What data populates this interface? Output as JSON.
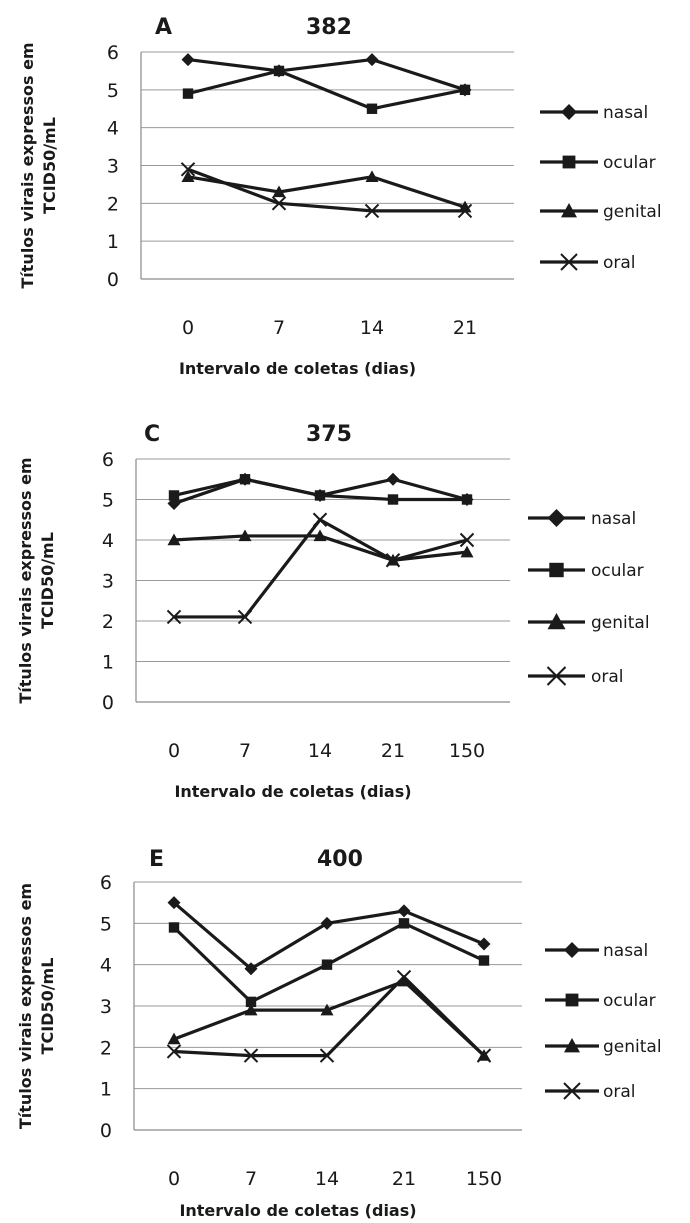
{
  "chart_data": [
    {
      "type": "line",
      "panel_label": "A",
      "title": "382",
      "xlabel": "Intervalo de coletas (dias)",
      "ylabel": "Títulos virais expressos em TCID50/mL",
      "categories": [
        "0",
        "7",
        "14",
        "21"
      ],
      "ylim": [
        0,
        6
      ],
      "yticks": [
        "0",
        "1",
        "2",
        "3",
        "4",
        "5",
        "6"
      ],
      "grid": true,
      "legend_position": "right",
      "series": [
        {
          "name": "nasal",
          "marker": "diamond",
          "values": [
            5.8,
            5.5,
            5.8,
            5.0
          ]
        },
        {
          "name": "ocular",
          "marker": "square",
          "values": [
            4.9,
            5.5,
            4.5,
            5.0
          ]
        },
        {
          "name": "genital",
          "marker": "triangle",
          "values": [
            2.7,
            2.3,
            2.7,
            1.9
          ]
        },
        {
          "name": "oral",
          "marker": "x",
          "values": [
            2.9,
            2.0,
            1.8,
            1.8
          ]
        }
      ]
    },
    {
      "type": "line",
      "panel_label": "C",
      "title": "375",
      "xlabel": "Intervalo de coletas (dias)",
      "ylabel": "Títulos virais expressos em TCID50/mL",
      "categories": [
        "0",
        "7",
        "14",
        "21",
        "150"
      ],
      "ylim": [
        0,
        6
      ],
      "yticks": [
        "0",
        "1",
        "2",
        "3",
        "4",
        "5",
        "6"
      ],
      "grid": true,
      "legend_position": "right",
      "series": [
        {
          "name": "nasal",
          "marker": "diamond",
          "values": [
            4.9,
            5.5,
            5.1,
            5.5,
            5.0
          ]
        },
        {
          "name": "ocular",
          "marker": "square",
          "values": [
            5.1,
            5.5,
            5.1,
            5.0,
            5.0
          ]
        },
        {
          "name": "genital",
          "marker": "triangle",
          "values": [
            4.0,
            4.1,
            4.1,
            3.5,
            3.7
          ]
        },
        {
          "name": "oral",
          "marker": "x",
          "values": [
            2.1,
            2.1,
            4.5,
            3.5,
            4.0
          ]
        }
      ]
    },
    {
      "type": "line",
      "panel_label": "E",
      "title": "400",
      "xlabel": "Intervalo de coletas (dias)",
      "ylabel": "Títulos virais expressos em TCID50/mL",
      "categories": [
        "0",
        "7",
        "14",
        "21",
        "150"
      ],
      "ylim": [
        0,
        6
      ],
      "yticks": [
        "0",
        "1",
        "2",
        "3",
        "4",
        "5",
        "6"
      ],
      "grid": true,
      "legend_position": "right",
      "series": [
        {
          "name": "nasal",
          "marker": "diamond",
          "values": [
            5.5,
            3.9,
            5.0,
            5.3,
            4.5
          ]
        },
        {
          "name": "ocular",
          "marker": "square",
          "values": [
            4.9,
            3.1,
            4.0,
            5.0,
            4.1
          ]
        },
        {
          "name": "genital",
          "marker": "triangle",
          "values": [
            2.2,
            2.9,
            2.9,
            3.6,
            1.8
          ]
        },
        {
          "name": "oral",
          "marker": "x",
          "values": [
            1.9,
            1.8,
            1.8,
            3.7,
            1.8
          ]
        }
      ]
    }
  ],
  "colors": {
    "line": "#1a1a1a",
    "grid": "#9a9a9a",
    "axis": "#8a8a8a",
    "text": "#1a1a1a"
  }
}
